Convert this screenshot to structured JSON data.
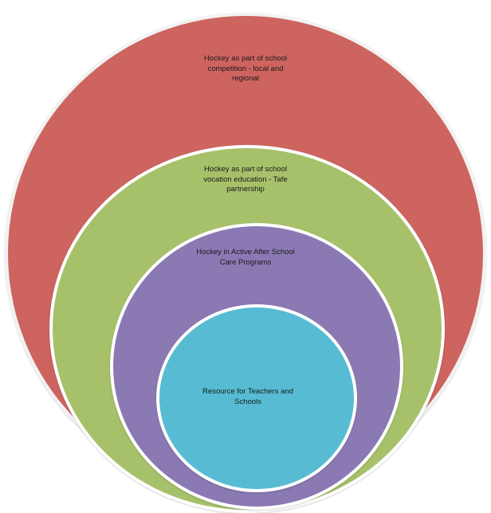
{
  "diagram": {
    "colors": {
      "outer": "#cd645f",
      "second": "#a6c16a",
      "third": "#8b79b3",
      "inner": "#57bcd3",
      "ring_border": "#ffffff"
    },
    "levels": [
      {
        "label": "Hockey as part of school\ncompetition - local and\nregional"
      },
      {
        "label": "Hockey as part of  school\nvocation education - Tafe\npartnership"
      },
      {
        "label": "Hockey in Active After School\nCare Programs"
      },
      {
        "label": "Resource for Teachers and\nSchools"
      }
    ]
  }
}
